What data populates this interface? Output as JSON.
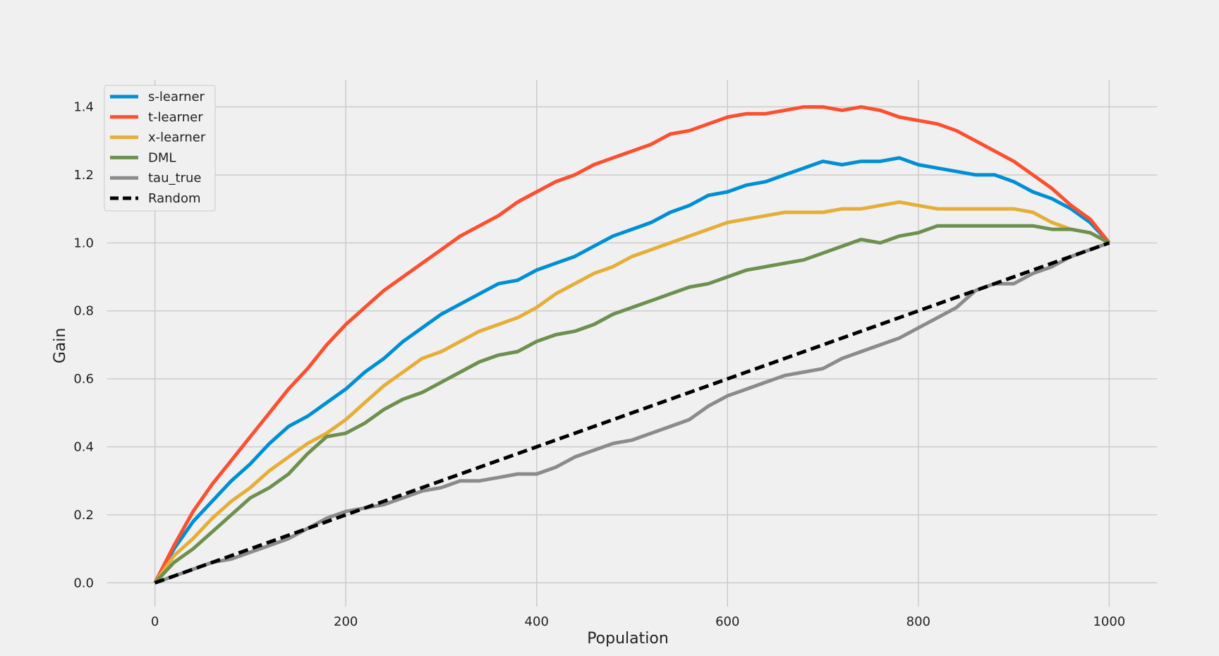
{
  "chart_data": {
    "type": "line",
    "title": "",
    "xlabel": "Population",
    "ylabel": "Gain",
    "xlim": [
      -50,
      1050
    ],
    "ylim": [
      -0.07,
      1.48
    ],
    "xticks": [
      0,
      200,
      400,
      600,
      800,
      1000
    ],
    "yticks": [
      0.0,
      0.2,
      0.4,
      0.6,
      0.8,
      1.0,
      1.2,
      1.4
    ],
    "grid": true,
    "legend_position": "top-left",
    "series": [
      {
        "name": "s-learner",
        "color": "#008fd5",
        "x": [
          0,
          20,
          40,
          60,
          80,
          100,
          120,
          140,
          160,
          180,
          200,
          220,
          240,
          260,
          280,
          300,
          320,
          340,
          360,
          380,
          400,
          420,
          440,
          460,
          480,
          500,
          520,
          540,
          560,
          580,
          600,
          620,
          640,
          660,
          680,
          700,
          720,
          740,
          760,
          780,
          800,
          820,
          840,
          860,
          880,
          900,
          920,
          940,
          960,
          980,
          1000
        ],
        "y": [
          0.0,
          0.1,
          0.18,
          0.24,
          0.3,
          0.35,
          0.41,
          0.46,
          0.49,
          0.53,
          0.57,
          0.62,
          0.66,
          0.71,
          0.75,
          0.79,
          0.82,
          0.85,
          0.88,
          0.89,
          0.92,
          0.94,
          0.96,
          0.99,
          1.02,
          1.04,
          1.06,
          1.09,
          1.11,
          1.14,
          1.15,
          1.17,
          1.18,
          1.2,
          1.22,
          1.24,
          1.23,
          1.24,
          1.24,
          1.25,
          1.23,
          1.22,
          1.21,
          1.2,
          1.2,
          1.18,
          1.15,
          1.13,
          1.1,
          1.06,
          1.0
        ]
      },
      {
        "name": "t-learner",
        "color": "#fc4f30",
        "x": [
          0,
          20,
          40,
          60,
          80,
          100,
          120,
          140,
          160,
          180,
          200,
          220,
          240,
          260,
          280,
          300,
          320,
          340,
          360,
          380,
          400,
          420,
          440,
          460,
          480,
          500,
          520,
          540,
          560,
          580,
          600,
          620,
          640,
          660,
          680,
          700,
          720,
          740,
          760,
          780,
          800,
          820,
          840,
          860,
          880,
          900,
          920,
          940,
          960,
          980,
          1000
        ],
        "y": [
          0.0,
          0.11,
          0.21,
          0.29,
          0.36,
          0.43,
          0.5,
          0.57,
          0.63,
          0.7,
          0.76,
          0.81,
          0.86,
          0.9,
          0.94,
          0.98,
          1.02,
          1.05,
          1.08,
          1.12,
          1.15,
          1.18,
          1.2,
          1.23,
          1.25,
          1.27,
          1.29,
          1.32,
          1.33,
          1.35,
          1.37,
          1.38,
          1.38,
          1.39,
          1.4,
          1.4,
          1.39,
          1.4,
          1.39,
          1.37,
          1.36,
          1.35,
          1.33,
          1.3,
          1.27,
          1.24,
          1.2,
          1.16,
          1.11,
          1.07,
          1.0
        ]
      },
      {
        "name": "x-learner",
        "color": "#e5ae38",
        "x": [
          0,
          20,
          40,
          60,
          80,
          100,
          120,
          140,
          160,
          180,
          200,
          220,
          240,
          260,
          280,
          300,
          320,
          340,
          360,
          380,
          400,
          420,
          440,
          460,
          480,
          500,
          520,
          540,
          560,
          580,
          600,
          620,
          640,
          660,
          680,
          700,
          720,
          740,
          760,
          780,
          800,
          820,
          840,
          860,
          880,
          900,
          920,
          940,
          960,
          980,
          1000
        ],
        "y": [
          0.0,
          0.08,
          0.13,
          0.19,
          0.24,
          0.28,
          0.33,
          0.37,
          0.41,
          0.44,
          0.48,
          0.53,
          0.58,
          0.62,
          0.66,
          0.68,
          0.71,
          0.74,
          0.76,
          0.78,
          0.81,
          0.85,
          0.88,
          0.91,
          0.93,
          0.96,
          0.98,
          1.0,
          1.02,
          1.04,
          1.06,
          1.07,
          1.08,
          1.09,
          1.09,
          1.09,
          1.1,
          1.1,
          1.11,
          1.12,
          1.11,
          1.1,
          1.1,
          1.1,
          1.1,
          1.1,
          1.09,
          1.06,
          1.04,
          1.03,
          1.0
        ]
      },
      {
        "name": "DML",
        "color": "#6d904f",
        "x": [
          0,
          20,
          40,
          60,
          80,
          100,
          120,
          140,
          160,
          180,
          200,
          220,
          240,
          260,
          280,
          300,
          320,
          340,
          360,
          380,
          400,
          420,
          440,
          460,
          480,
          500,
          520,
          540,
          560,
          580,
          600,
          620,
          640,
          660,
          680,
          700,
          720,
          740,
          760,
          780,
          800,
          820,
          840,
          860,
          880,
          900,
          920,
          940,
          960,
          980,
          1000
        ],
        "y": [
          0.0,
          0.06,
          0.1,
          0.15,
          0.2,
          0.25,
          0.28,
          0.32,
          0.38,
          0.43,
          0.44,
          0.47,
          0.51,
          0.54,
          0.56,
          0.59,
          0.62,
          0.65,
          0.67,
          0.68,
          0.71,
          0.73,
          0.74,
          0.76,
          0.79,
          0.81,
          0.83,
          0.85,
          0.87,
          0.88,
          0.9,
          0.92,
          0.93,
          0.94,
          0.95,
          0.97,
          0.99,
          1.01,
          1.0,
          1.02,
          1.03,
          1.05,
          1.05,
          1.05,
          1.05,
          1.05,
          1.05,
          1.04,
          1.04,
          1.03,
          1.0
        ]
      },
      {
        "name": "tau_true",
        "color": "#8b8b8b",
        "x": [
          0,
          20,
          40,
          60,
          80,
          100,
          120,
          140,
          160,
          180,
          200,
          220,
          240,
          260,
          280,
          300,
          320,
          340,
          360,
          380,
          400,
          420,
          440,
          460,
          480,
          500,
          520,
          540,
          560,
          580,
          600,
          620,
          640,
          660,
          680,
          700,
          720,
          740,
          760,
          780,
          800,
          820,
          840,
          860,
          880,
          900,
          920,
          940,
          960,
          980,
          1000
        ],
        "y": [
          0.0,
          0.02,
          0.04,
          0.06,
          0.07,
          0.09,
          0.11,
          0.13,
          0.16,
          0.19,
          0.21,
          0.22,
          0.23,
          0.25,
          0.27,
          0.28,
          0.3,
          0.3,
          0.31,
          0.32,
          0.32,
          0.34,
          0.37,
          0.39,
          0.41,
          0.42,
          0.44,
          0.46,
          0.48,
          0.52,
          0.55,
          0.57,
          0.59,
          0.61,
          0.62,
          0.63,
          0.66,
          0.68,
          0.7,
          0.72,
          0.75,
          0.78,
          0.81,
          0.86,
          0.88,
          0.88,
          0.91,
          0.93,
          0.96,
          0.98,
          1.0
        ]
      },
      {
        "name": "Random",
        "color": "#000000",
        "dashed": true,
        "x": [
          0,
          1000
        ],
        "y": [
          0.0,
          1.0
        ]
      }
    ]
  }
}
